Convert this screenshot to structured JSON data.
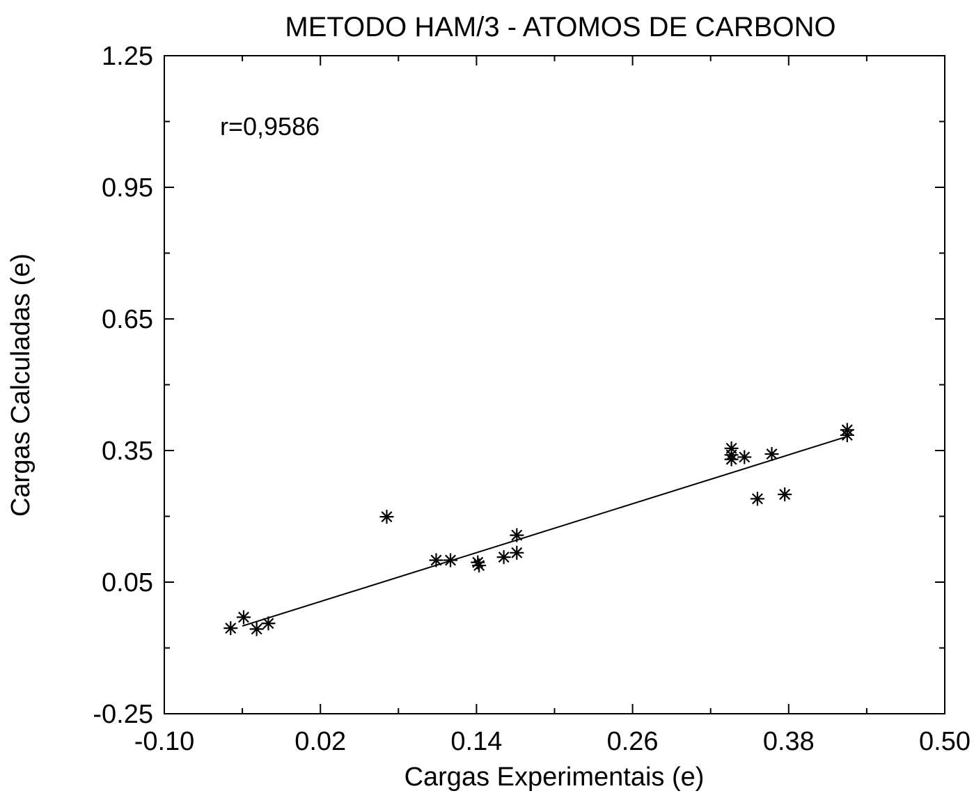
{
  "chart_data": {
    "type": "scatter",
    "title": "METODO HAM/3 - ATOMOS DE CARBONO",
    "xlabel": "Cargas Experimentais (e)",
    "ylabel": "Cargas Calculadas (e)",
    "xlim": [
      -0.1,
      0.5
    ],
    "ylim": [
      -0.25,
      1.25
    ],
    "x_ticks": [
      "-0.10",
      "0.02",
      "0.14",
      "0.26",
      "0.38",
      "0.50"
    ],
    "y_ticks": [
      "-0.25",
      "0.05",
      "0.35",
      "0.65",
      "0.95",
      "1.25"
    ],
    "annotation": "r=0,9586",
    "marker": "asterisk",
    "grid": false,
    "points": [
      {
        "x": -0.049,
        "y": -0.055
      },
      {
        "x": -0.039,
        "y": -0.03
      },
      {
        "x": -0.029,
        "y": -0.057
      },
      {
        "x": -0.02,
        "y": -0.044
      },
      {
        "x": 0.071,
        "y": 0.199
      },
      {
        "x": 0.109,
        "y": 0.1
      },
      {
        "x": 0.12,
        "y": 0.1
      },
      {
        "x": 0.141,
        "y": 0.095
      },
      {
        "x": 0.142,
        "y": 0.088
      },
      {
        "x": 0.161,
        "y": 0.107
      },
      {
        "x": 0.171,
        "y": 0.117
      },
      {
        "x": 0.171,
        "y": 0.157
      },
      {
        "x": 0.336,
        "y": 0.355
      },
      {
        "x": 0.336,
        "y": 0.34
      },
      {
        "x": 0.336,
        "y": 0.33
      },
      {
        "x": 0.346,
        "y": 0.335
      },
      {
        "x": 0.356,
        "y": 0.24
      },
      {
        "x": 0.367,
        "y": 0.342
      },
      {
        "x": 0.377,
        "y": 0.25
      },
      {
        "x": 0.425,
        "y": 0.397
      },
      {
        "x": 0.425,
        "y": 0.385
      }
    ],
    "fit_line": {
      "x": [
        -0.04,
        0.425
      ],
      "y": [
        -0.05,
        0.382
      ]
    }
  }
}
